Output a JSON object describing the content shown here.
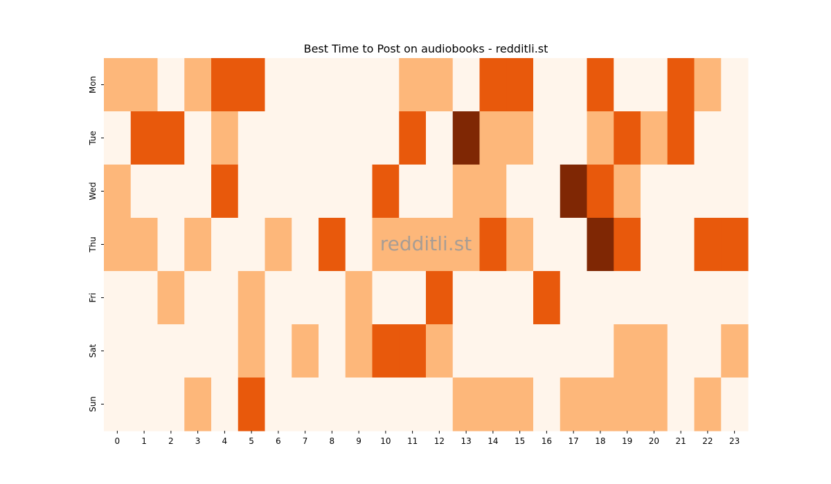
{
  "chart_data": {
    "type": "heatmap",
    "title": "Best Time to Post on audiobooks - redditli.st",
    "watermark": "redditli.st",
    "x_categories": [
      "0",
      "1",
      "2",
      "3",
      "4",
      "5",
      "6",
      "7",
      "8",
      "9",
      "10",
      "11",
      "12",
      "13",
      "14",
      "15",
      "16",
      "17",
      "18",
      "19",
      "20",
      "21",
      "22",
      "23"
    ],
    "y_categories": [
      "Mon",
      "Tue",
      "Wed",
      "Thu",
      "Fri",
      "Sat",
      "Sun"
    ],
    "values": [
      [
        1,
        1,
        0,
        1,
        2,
        2,
        0,
        0,
        0,
        0,
        0,
        1,
        1,
        0,
        2,
        2,
        0,
        0,
        2,
        0,
        0,
        2,
        1,
        0
      ],
      [
        0,
        2,
        2,
        0,
        1,
        0,
        0,
        0,
        0,
        0,
        0,
        2,
        0,
        3,
        1,
        1,
        0,
        0,
        1,
        2,
        1,
        2,
        0,
        0
      ],
      [
        1,
        0,
        0,
        0,
        2,
        0,
        0,
        0,
        0,
        0,
        2,
        0,
        0,
        1,
        1,
        0,
        0,
        3,
        2,
        1,
        0,
        0,
        0,
        0
      ],
      [
        1,
        1,
        0,
        1,
        0,
        0,
        1,
        0,
        2,
        0,
        1,
        1,
        1,
        1,
        2,
        1,
        0,
        0,
        3,
        2,
        0,
        0,
        2,
        2
      ],
      [
        0,
        0,
        1,
        0,
        0,
        1,
        0,
        0,
        0,
        1,
        0,
        0,
        2,
        0,
        0,
        0,
        2,
        0,
        0,
        0,
        0,
        0,
        0,
        0
      ],
      [
        0,
        0,
        0,
        0,
        0,
        1,
        0,
        1,
        0,
        1,
        2,
        2,
        1,
        0,
        0,
        0,
        0,
        0,
        0,
        1,
        1,
        0,
        0,
        1
      ],
      [
        0,
        0,
        0,
        1,
        0,
        2,
        0,
        0,
        0,
        0,
        0,
        0,
        0,
        1,
        1,
        1,
        0,
        1,
        1,
        1,
        1,
        0,
        1,
        0
      ]
    ],
    "vmin": 0,
    "vmax": 3,
    "colormap": [
      "#fff5eb",
      "#fdb77a",
      "#e8590c",
      "#7f2704"
    ],
    "legend": "none",
    "grid": false
  }
}
